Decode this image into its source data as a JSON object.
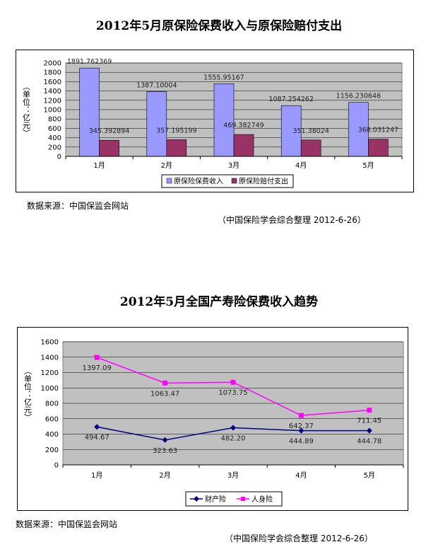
{
  "chart_data": [
    {
      "type": "bar",
      "title": "2012年5月原保险保费收入与原保险赔付支出",
      "ylabel": "（单位：亿元）",
      "categories": [
        "1月",
        "2月",
        "3月",
        "4月",
        "5月"
      ],
      "yticks": [
        "0",
        "200",
        "400",
        "600",
        "800",
        "1000",
        "1200",
        "1400",
        "1600",
        "1800",
        "2000"
      ],
      "ylim": [
        0,
        2000
      ],
      "series": [
        {
          "name": "原保险保费收入",
          "color": "#9999FF",
          "values": [
            1891.762369,
            1387.10004,
            1555.95167,
            1087.254262,
            1156.230646
          ],
          "labels": [
            "1891.762369",
            "1387.10004",
            "1555.95167",
            "1087.254262",
            "1156.230646"
          ]
        },
        {
          "name": "原保险赔付支出",
          "color": "#993366",
          "values": [
            345.392894,
            357.195199,
            469.382749,
            351.38024,
            368.031247
          ],
          "labels": [
            "345.392894",
            "357.195199",
            "469.382749",
            "351.38024",
            "368.031247"
          ]
        }
      ],
      "plot_background": "#C0C0C0",
      "grid": true,
      "legend_position": "bottom"
    },
    {
      "type": "line",
      "title": "2012年5月全国产寿险保费收入趋势",
      "ylabel": "（单位：亿元）",
      "categories": [
        "1月",
        "2月",
        "3月",
        "4月",
        "5月"
      ],
      "yticks": [
        "0",
        "200",
        "400",
        "600",
        "800",
        "1000",
        "1200",
        "1400",
        "1600"
      ],
      "ylim": [
        0,
        1600
      ],
      "series": [
        {
          "name": "财产险",
          "color": "#000080",
          "marker": "diamond",
          "values": [
            494.67,
            323.63,
            482.2,
            444.89,
            444.78
          ],
          "labels": [
            "494.67",
            "323.63",
            "482.20",
            "444.89",
            "444.78"
          ]
        },
        {
          "name": "人身险",
          "color": "#FF00FF",
          "marker": "square",
          "values": [
            1397.09,
            1063.47,
            1073.75,
            642.37,
            711.45
          ],
          "labels": [
            "1397.09",
            "1063.47",
            "1073.75",
            "642.37",
            "711.45"
          ]
        }
      ],
      "plot_background": "#C0C0C0",
      "grid": true,
      "legend_position": "bottom"
    }
  ],
  "notes": {
    "source_1": "数据来源：中国保监会网站",
    "credit_1": "（中国保险学会综合整理    2012-6-26）",
    "source_2": "数据来源：中国保监会网站",
    "credit_2": "（中国保险学会综合整理    2012-6-26）"
  }
}
